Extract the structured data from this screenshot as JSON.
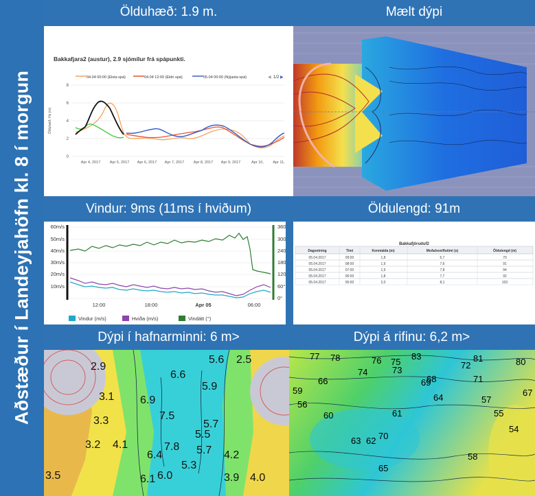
{
  "sidebar": {
    "title": "Aðstæður í Landeyjahöfn kl. 8 í morgun"
  },
  "headers": {
    "wave_height": "Ölduhæð: 1.9 m.",
    "measured_depth": "Mælt dýpi",
    "wind": "Vindur: 9ms (11ms í hviðum)",
    "wave_length": "Öldulengd: 91m",
    "harbor_mouth_depth": "Dýpi í hafnarminni: 6 m>",
    "bar_depth": "Dýpi á rifinu: 6,2 m>"
  },
  "wave_chart": {
    "title": "Bakkafjara2 (austur), 2.9 sjómílur frá spápunkti.",
    "legend": [
      "04.04 00:00 (Elsta spá)",
      "04.04 12:00 (Eldri spá)",
      "05.04 00:00 (Nýjasta spá)"
    ],
    "pager": "1/2",
    "ylabel": "Ölduhæð, Hs (m)",
    "y_ticks": [
      "0",
      "2",
      "4",
      "6",
      "8"
    ],
    "x_ticks": [
      "Apr 4, 2017",
      "Apr 5, 2017",
      "Apr 6, 2017",
      "Apr 7, 2017",
      "Apr 8, 2017",
      "Apr 9, 2017",
      "Apr 10,",
      "Apr 11,"
    ]
  },
  "wind_chart": {
    "left_ticks": [
      "60m/s",
      "50m/s",
      "40m/s",
      "30m/s",
      "20m/s",
      "10m/s"
    ],
    "right_ticks": [
      "360°",
      "300°",
      "240°",
      "180°",
      "120°",
      "60°",
      "0°"
    ],
    "x_ticks": [
      "12:00",
      "18:00",
      "Apr 05",
      "06:00"
    ],
    "legend": [
      "Vindur (m/s)",
      "Hviða (m/s)",
      "Vindátt (°)"
    ]
  },
  "wave_table": {
    "title": "Bakkafjöruduf2",
    "headers": [
      "Dagsetning",
      "Tími",
      "Kennialda (m)",
      "Meðalsveiflutími (s)",
      "Öldulengd (m)"
    ],
    "rows": [
      [
        "05.04.2017",
        "09:00",
        "1,8",
        "6,7",
        "70"
      ],
      [
        "05.04.2017",
        "08:00",
        "1,9",
        "7,6",
        "91"
      ],
      [
        "05.04.2017",
        "07:00",
        "1,9",
        "7,8",
        "94"
      ],
      [
        "05.04.2017",
        "06:00",
        "1,8",
        "7,7",
        "92"
      ],
      [
        "05.04.2017",
        "05:00",
        "2,0",
        "8,1",
        "103"
      ]
    ]
  },
  "harbor_depths": [
    "6.9",
    "6.1",
    "5.9",
    "7.5",
    "5.5",
    "5.3",
    "5.7",
    "6.4",
    "7.8",
    "6.6",
    "4.2",
    "3.9",
    "3.1",
    "2.9",
    "3.3",
    "3.2",
    "4.1",
    "3.5",
    "4.0",
    "2.5",
    "6.6",
    "6.0",
    "5.6",
    "5.7"
  ],
  "bar_depths": [
    "77",
    "75",
    "72",
    "68",
    "83",
    "81",
    "66",
    "69",
    "71",
    "59",
    "61",
    "63",
    "64",
    "65",
    "60",
    "58",
    "57",
    "54",
    "56",
    "62",
    "70",
    "67",
    "55",
    "73",
    "74",
    "76",
    "78",
    "80"
  ],
  "colors": {
    "accent": "#2f73b5",
    "header_text": "#ffffff"
  }
}
